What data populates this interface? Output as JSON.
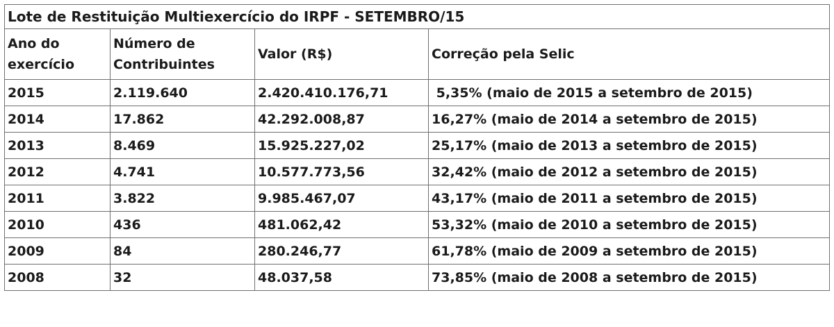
{
  "table": {
    "title": "Lote de Restituição Multiexercício do IRPF - SETEMBRO/15",
    "headers": {
      "ano": "Ano do exercício",
      "contribuintes": "Número de Contribuintes",
      "valor": "Valor (R$)",
      "correcao": "Correção pela Selic"
    },
    "rows": [
      {
        "ano": "2015",
        "contribuintes": "2.119.640",
        "valor": "2.420.410.176,71",
        "correcao": " 5,35% (maio de 2015 a setembro de 2015)"
      },
      {
        "ano": "2014",
        "contribuintes": "17.862",
        "valor": "42.292.008,87",
        "correcao": "16,27% (maio de 2014 a setembro de 2015)"
      },
      {
        "ano": "2013",
        "contribuintes": "8.469",
        "valor": "15.925.227,02",
        "correcao": "25,17% (maio de 2013 a setembro de 2015)"
      },
      {
        "ano": "2012",
        "contribuintes": "4.741",
        "valor": "10.577.773,56",
        "correcao": "32,42% (maio de 2012 a setembro de 2015)"
      },
      {
        "ano": "2011",
        "contribuintes": "3.822",
        "valor": "9.985.467,07",
        "correcao": "43,17% (maio de 2011 a setembro de 2015)"
      },
      {
        "ano": "2010",
        "contribuintes": "436",
        "valor": "481.062,42",
        "correcao": "53,32% (maio de 2010 a setembro de 2015)"
      },
      {
        "ano": "2009",
        "contribuintes": "84",
        "valor": "280.246,77",
        "correcao": "61,78% (maio de 2009 a setembro de 2015)"
      },
      {
        "ano": "2008",
        "contribuintes": "32",
        "valor": "48.037,58",
        "correcao": "73,85% (maio de 2008 a setembro de 2015)"
      }
    ]
  }
}
